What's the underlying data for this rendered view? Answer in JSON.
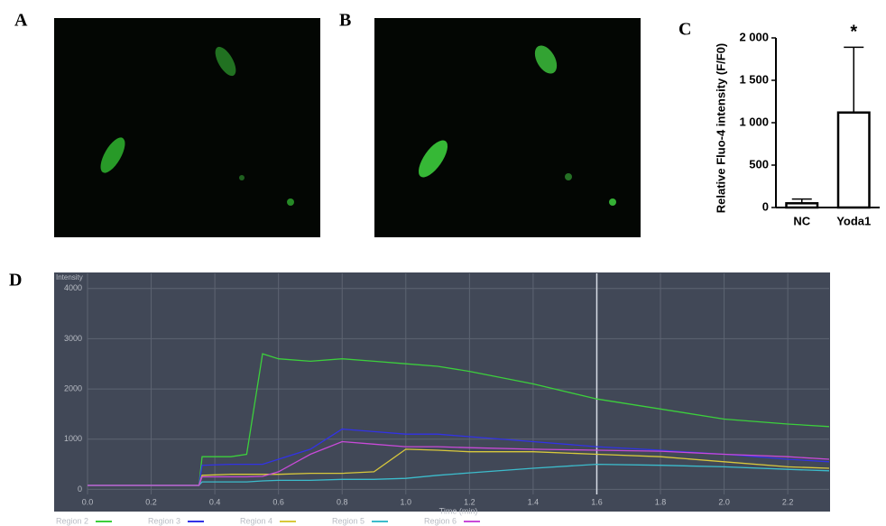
{
  "panel_labels": [
    "A",
    "B",
    "C",
    "D"
  ],
  "chart_data": [
    {
      "type": "bar",
      "y_label": "Relative Fluo-4 intensity (F/F0)",
      "categories": [
        "NC",
        "Yoda1"
      ],
      "values": [
        50,
        1120
      ],
      "errors": [
        50,
        770
      ],
      "annotation": "*",
      "color": "#ffffff",
      "edge_color": "#000000",
      "ylim": [
        0,
        2000
      ],
      "yticks": [
        0,
        500,
        {
          "value": 1000,
          "label": "1 000"
        },
        {
          "value": 1500,
          "label": "1 500"
        },
        {
          "value": 2000,
          "label": "2 000"
        }
      ]
    },
    {
      "type": "line",
      "y_label": "Intensity",
      "x_label": "Time (min)",
      "x": [
        0,
        0.34,
        0.35,
        0.36,
        0.45,
        0.5,
        0.55,
        0.6,
        0.7,
        0.8,
        0.9,
        1.0,
        1.1,
        1.2,
        1.4,
        1.6,
        1.8,
        2.0,
        2.2,
        2.33
      ],
      "series": [
        {
          "name": "Region 2",
          "color": "#3ccf3c",
          "values": [
            80,
            80,
            80,
            650,
            650,
            700,
            2700,
            2600,
            2550,
            2600,
            2550,
            2500,
            2450,
            2350,
            2100,
            1800,
            1600,
            1400,
            1300,
            1250
          ]
        },
        {
          "name": "Region 3",
          "color": "#3232e6",
          "values": [
            80,
            80,
            80,
            480,
            500,
            500,
            500,
            600,
            800,
            1200,
            1150,
            1100,
            1100,
            1050,
            950,
            850,
            780,
            700,
            600,
            550
          ]
        },
        {
          "name": "Region 4",
          "color": "#d8c83c",
          "values": [
            80,
            80,
            80,
            280,
            300,
            300,
            300,
            300,
            320,
            320,
            350,
            800,
            780,
            750,
            750,
            700,
            650,
            550,
            450,
            420
          ]
        },
        {
          "name": "Region 5",
          "color": "#3cbccc",
          "values": [
            80,
            80,
            80,
            150,
            150,
            150,
            170,
            180,
            180,
            200,
            200,
            220,
            280,
            330,
            420,
            500,
            480,
            450,
            400,
            370
          ]
        },
        {
          "name": "Region 6",
          "color": "#c84ad8",
          "values": [
            80,
            80,
            80,
            250,
            250,
            250,
            260,
            350,
            700,
            950,
            900,
            850,
            850,
            830,
            800,
            780,
            760,
            700,
            650,
            600
          ]
        }
      ],
      "cursor_x": 1.6,
      "background": "#414857",
      "grid": true,
      "xlim": [
        0,
        2.33
      ],
      "ylim": [
        -100,
        4300
      ],
      "xticks": [
        {
          "value": 0,
          "label": "0.0"
        },
        0.2,
        0.4,
        0.6,
        0.8,
        {
          "value": 1,
          "label": "1.0"
        },
        1.2,
        1.4,
        1.6,
        1.8,
        {
          "value": 2,
          "label": "2.0"
        },
        2.2
      ],
      "yticks": [
        0,
        1000,
        2000,
        3000,
        4000
      ]
    }
  ]
}
